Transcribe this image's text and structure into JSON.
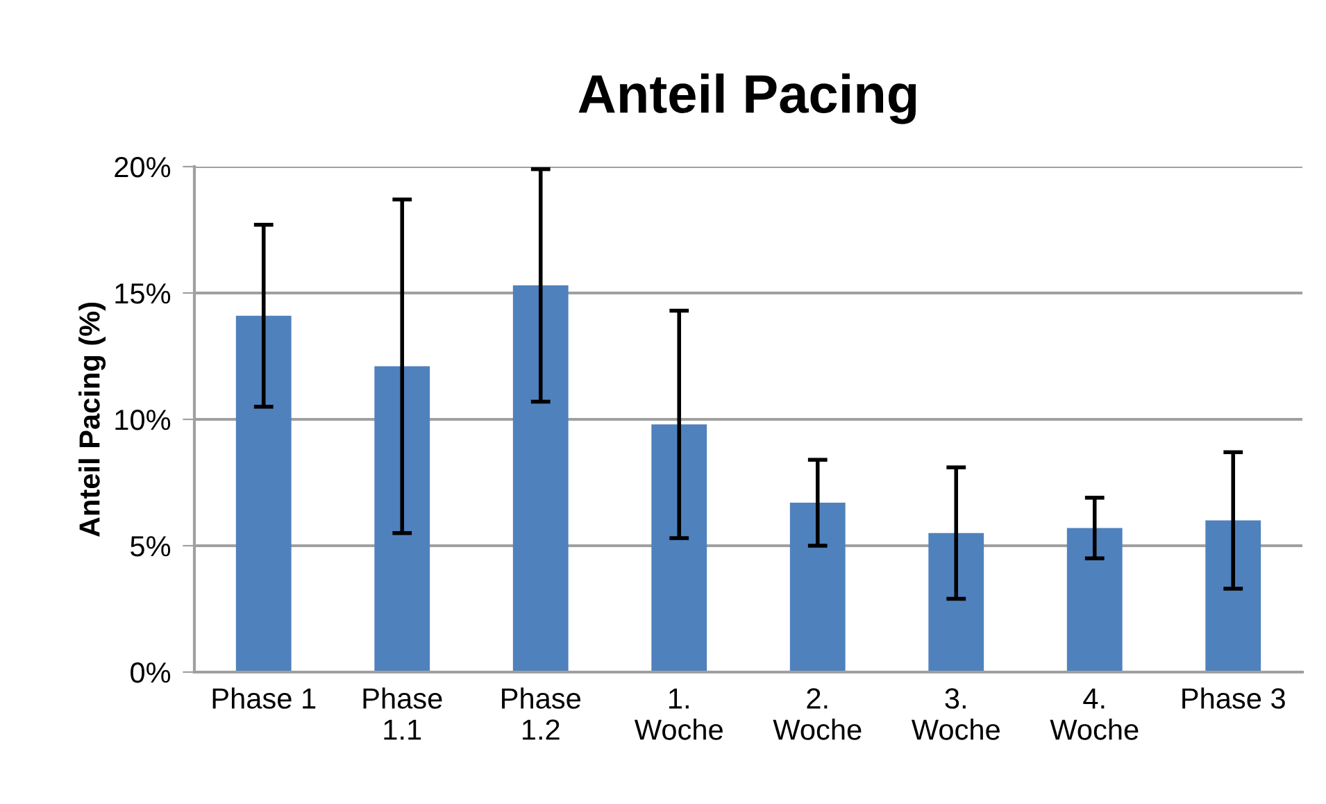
{
  "chart_data": {
    "type": "bar",
    "title": "Anteil Pacing",
    "ylabel": "Anteil Pacing (%)",
    "categories": [
      "Phase 1",
      "Phase\n1.1",
      "Phase\n1.2",
      "1.\nWoche",
      "2.\nWoche",
      "3.\nWoche",
      "4.\nWoche",
      "Phase 3"
    ],
    "values": [
      14.1,
      12.1,
      15.3,
      9.8,
      6.7,
      5.5,
      5.7,
      6.0
    ],
    "errors": [
      3.6,
      6.6,
      4.6,
      4.5,
      1.7,
      2.6,
      1.2,
      2.7
    ],
    "color": "#4f81bd",
    "ylim": [
      0,
      20
    ],
    "yticks": [
      {
        "value": 0,
        "label": "0%"
      },
      {
        "value": 5,
        "label": "5%"
      },
      {
        "value": 10,
        "label": "10%"
      },
      {
        "value": 15,
        "label": "15%"
      },
      {
        "value": 20,
        "label": "20%"
      }
    ],
    "grid": "y",
    "legend": false
  }
}
